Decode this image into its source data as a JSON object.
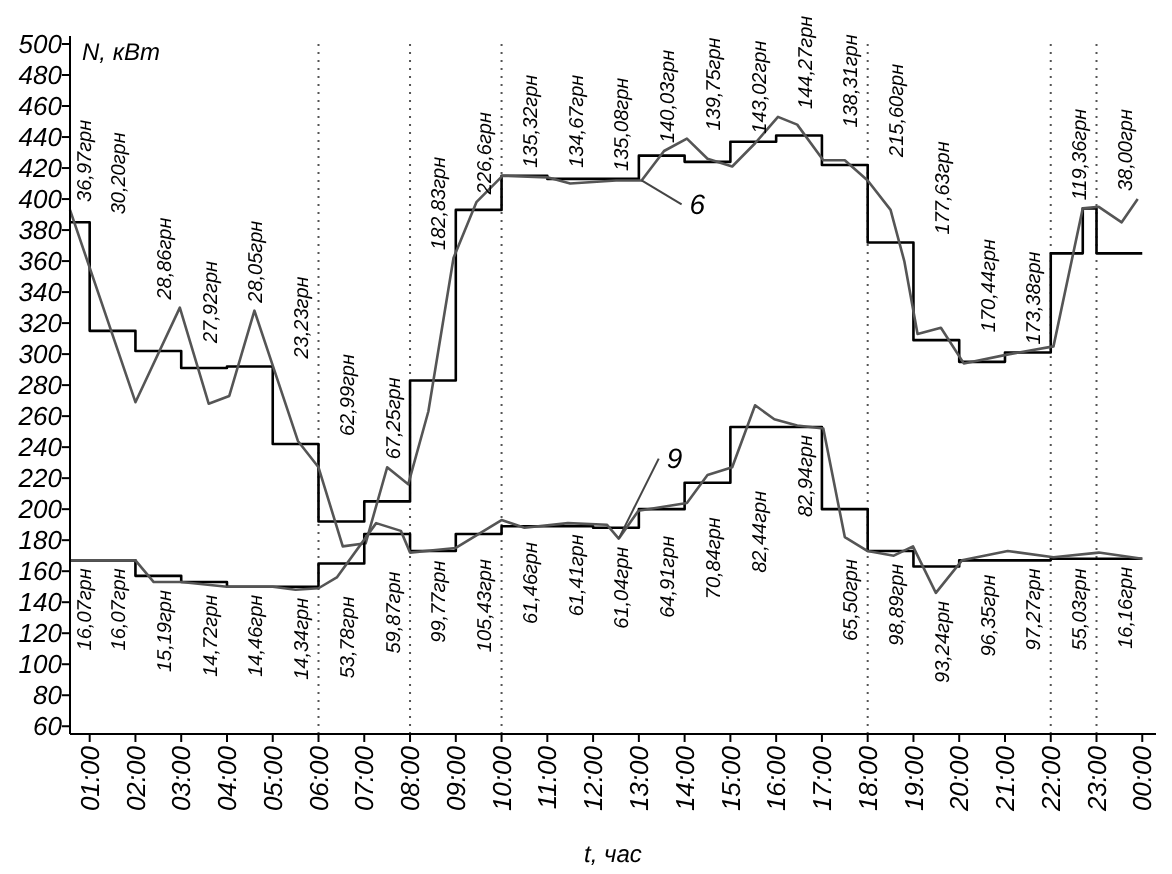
{
  "chart_data": {
    "type": "line",
    "xlabel": "t, час",
    "ylabel": "N, кВт",
    "xlim": [
      0.57,
      24.3
    ],
    "ylim": [
      55,
      500
    ],
    "xticks": [
      {
        "value": 1,
        "label": "01:00"
      },
      {
        "value": 2,
        "label": "02:00"
      },
      {
        "value": 3,
        "label": "03:00"
      },
      {
        "value": 4,
        "label": "04:00"
      },
      {
        "value": 5,
        "label": "05:00"
      },
      {
        "value": 6,
        "label": "06:00"
      },
      {
        "value": 7,
        "label": "07:00"
      },
      {
        "value": 8,
        "label": "08:00"
      },
      {
        "value": 9,
        "label": "09:00"
      },
      {
        "value": 10,
        "label": "10:00"
      },
      {
        "value": 11,
        "label": "11:00"
      },
      {
        "value": 12,
        "label": "12:00"
      },
      {
        "value": 13,
        "label": "13:00"
      },
      {
        "value": 14,
        "label": "14:00"
      },
      {
        "value": 15,
        "label": "15:00"
      },
      {
        "value": 16,
        "label": "16:00"
      },
      {
        "value": 17,
        "label": "17:00"
      },
      {
        "value": 18,
        "label": "18:00"
      },
      {
        "value": 19,
        "label": "19:00"
      },
      {
        "value": 20,
        "label": "20:00"
      },
      {
        "value": 21,
        "label": "21:00"
      },
      {
        "value": 22,
        "label": "22:00"
      },
      {
        "value": 23,
        "label": "23:00"
      },
      {
        "value": 24,
        "label": "00:00"
      }
    ],
    "yticks": [
      60,
      80,
      100,
      120,
      140,
      160,
      180,
      200,
      220,
      240,
      260,
      280,
      300,
      320,
      340,
      360,
      380,
      400,
      420,
      440,
      460,
      480,
      500
    ],
    "grid": false,
    "marker": "none",
    "series": [
      {
        "type": "step",
        "color": "#000000",
        "x": [
          0.57,
          1,
          2,
          3,
          4,
          5,
          6,
          7,
          8,
          9,
          10,
          11,
          12,
          13,
          14,
          15,
          16,
          17,
          18,
          19,
          20,
          21,
          22,
          22.7,
          23,
          24
        ],
        "values": [
          385,
          385,
          315,
          302,
          291,
          292,
          242,
          192,
          205,
          283,
          393,
          415,
          413,
          413,
          428,
          424,
          437,
          441,
          422,
          372,
          309,
          295,
          301,
          365,
          394,
          365
        ]
      },
      {
        "type": "line",
        "color": "#555555",
        "x": [
          0.57,
          2,
          2.97,
          3.6,
          4.05,
          4.6,
          5.55,
          6,
          6.53,
          7.03,
          7.5,
          7.96,
          8.4,
          8.95,
          9.45,
          10.02,
          11,
          11.5,
          12.5,
          13.06,
          13.55,
          14.05,
          14.5,
          15.04,
          15.54,
          16.04,
          16.46,
          17.03,
          17.5,
          18,
          18.5,
          18.8,
          19.09,
          19.6,
          20.1,
          21.1,
          22.06,
          22.7,
          23.05,
          23.55,
          23.9
        ],
        "values": [
          393,
          269,
          330,
          268,
          273,
          328,
          244,
          227,
          176,
          178,
          227,
          216,
          263,
          362,
          398,
          415,
          414,
          410,
          412,
          412,
          431,
          439,
          426,
          421,
          436,
          453,
          448,
          425,
          425,
          412,
          393,
          360,
          313,
          317,
          294,
          300,
          305,
          394,
          395,
          385,
          400
        ]
      },
      {
        "type": "step",
        "color": "#000000",
        "x": [
          0.57,
          1,
          2,
          3,
          4,
          5,
          6,
          7,
          8,
          9,
          10,
          11,
          12,
          13,
          14,
          15,
          16,
          17,
          18,
          19,
          20,
          21,
          22,
          23,
          24
        ],
        "values": [
          167,
          167,
          167,
          157,
          153,
          150,
          150,
          165,
          184,
          173,
          184,
          189,
          189,
          188,
          200,
          217,
          253,
          253,
          200,
          173,
          163,
          167,
          167,
          168,
          168
        ]
      },
      {
        "type": "line",
        "color": "#555555",
        "x": [
          0.57,
          1,
          2,
          2.4,
          3,
          4,
          5,
          5.5,
          6,
          6.4,
          7.26,
          7.8,
          8,
          9,
          10,
          10.5,
          11.45,
          12.3,
          12.56,
          12.99,
          14.05,
          14.5,
          15.04,
          15.54,
          15.96,
          16.46,
          17.03,
          17.5,
          18,
          18.57,
          18.99,
          19.49,
          20.06,
          21.06,
          22.06,
          23.05,
          24
        ],
        "values": [
          167,
          167,
          167,
          153,
          153,
          150,
          150,
          148,
          149,
          156,
          191,
          186,
          172,
          175,
          193,
          188,
          191,
          190,
          181,
          199,
          204,
          222,
          227,
          267,
          258,
          254,
          252,
          182,
          173,
          170,
          176,
          146,
          167,
          173,
          169,
          172,
          168
        ]
      }
    ],
    "ref_lines": [
      {
        "axis": "x",
        "value": 6,
        "color": "#555555",
        "line_style": "dotted"
      },
      {
        "axis": "x",
        "value": 8,
        "color": "#555555",
        "line_style": "dotted"
      },
      {
        "axis": "x",
        "value": 10,
        "color": "#555555",
        "line_style": "dotted"
      },
      {
        "axis": "x",
        "value": 18,
        "color": "#555555",
        "line_style": "dotted"
      },
      {
        "axis": "x",
        "value": 22,
        "color": "#555555",
        "line_style": "dotted"
      },
      {
        "axis": "x",
        "value": 23,
        "color": "#555555",
        "line_style": "dotted"
      }
    ],
    "annotations": [
      {
        "text": "6",
        "x": 13.06,
        "y": 412
      },
      {
        "text": "9",
        "x": 12.56,
        "y": 181
      },
      "36,97грн",
      "30,20грн",
      "28,86грн",
      "27,92грн",
      "28,05грн",
      "23,23грн",
      "62,99грн",
      "67,25грн",
      "182,83грн",
      "226,6грн",
      "135,32грн",
      "134,67грн",
      "135,08грн",
      "140,03грн",
      "139,75грн",
      "143,02грн",
      "144,27грн",
      "138,31грн",
      "215,60грн",
      "177,63грн",
      "170,44грн",
      "173,38грн",
      "119,36грн",
      "38,00грн",
      "16,07грн",
      "16,07грн",
      "15,19грн",
      "14,72грн",
      "14,46грн",
      "14,34грн",
      "53,78грн",
      "59,87грн",
      "99,77грн",
      "105,43грн",
      "61,46грн",
      "61,41грн",
      "61,04грн",
      "64,91грн",
      "70,84грн",
      "82,44грн",
      "82,94грн",
      "65,50грн",
      "98,89грн",
      "93,24грн",
      "96,35грн",
      "97,27грн",
      "55,03грн",
      "16,16грн"
    ]
  }
}
